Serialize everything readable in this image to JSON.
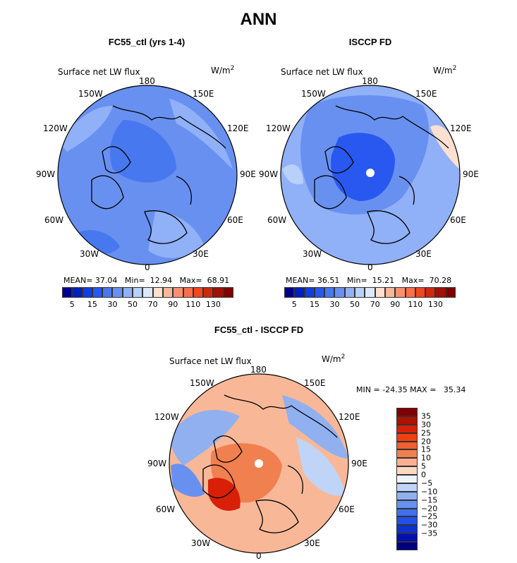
{
  "main_title": "ANN",
  "panels": [
    {
      "title": "FC55_ctl (yrs 1-4)",
      "field_label": "Surface net LW flux",
      "units": "W/m",
      "units_exp": "2",
      "lon_labels": {
        "n": "180",
        "nw": "150W",
        "ne": "150E",
        "wnw": "120W",
        "ene": "120E",
        "w": "90W",
        "e": "90E",
        "wsw": "60W",
        "ese": "60E",
        "sw": "30W",
        "se": "30E",
        "s": "0"
      },
      "stats": {
        "mean_label": "MEAN=",
        "mean": "37.04",
        "min_label": "Min=",
        "min": "12.94",
        "max_label": "Max=",
        "max": "68.91"
      }
    },
    {
      "title": "ISCCP FD",
      "field_label": "Surface net LW flux",
      "units": "W/m",
      "units_exp": "2",
      "lon_labels": {
        "n": "180",
        "nw": "150W",
        "ne": "150E",
        "wnw": "120W",
        "ene": "120E",
        "w": "90W",
        "e": "90E",
        "wsw": "60W",
        "ese": "60E",
        "sw": "30W",
        "se": "30E",
        "s": "0"
      },
      "stats": {
        "mean_label": "MEAN=",
        "mean": "36.51",
        "min_label": "Min=",
        "min": "15.21",
        "max_label": "Max=",
        "max": "70.28"
      }
    },
    {
      "title": "FC55_ctl - ISCCP FD",
      "field_label": "Surface net LW flux",
      "units": "W/m",
      "units_exp": "2",
      "lon_labels": {
        "n": "180",
        "nw": "150W",
        "ne": "150E",
        "wnw": "120W",
        "ene": "120E",
        "w": "90W",
        "e": "90E",
        "wsw": "60W",
        "ese": "60E",
        "sw": "30W",
        "se": "30E",
        "s": "0"
      },
      "stats": {
        "min_label": "MIN =",
        "min": "-24.35",
        "max_label": "MAX =",
        "max": "35.34"
      }
    }
  ],
  "colorbar_abs": {
    "colors": [
      "#00008b",
      "#0020c0",
      "#1040e0",
      "#2858f0",
      "#4878f0",
      "#6890f0",
      "#90b0f8",
      "#b8d0fa",
      "#dde8fa",
      "#fde0d0",
      "#f8b898",
      "#f89070",
      "#f87048",
      "#f04820",
      "#d02810",
      "#a01008",
      "#800000"
    ],
    "labels": [
      "5",
      "15",
      "30",
      "50",
      "70",
      "90",
      "110",
      "130"
    ]
  },
  "colorbar_diff": {
    "colors": [
      "#800000",
      "#b01000",
      "#d82008",
      "#f04010",
      "#f06030",
      "#f08050",
      "#f8b090",
      "#fcd8c0",
      "#eef4fc",
      "#c0d4f8",
      "#90b0f0",
      "#6890f0",
      "#4070f0",
      "#2050e8",
      "#1030d0",
      "#0010b0",
      "#000080"
    ],
    "labels": [
      "35",
      "30",
      "25",
      "20",
      "15",
      "10",
      "5",
      "0",
      "-5",
      "-10",
      "-15",
      "-20",
      "-25",
      "-30",
      "-35"
    ]
  },
  "chart_data": [
    {
      "type": "heatmap",
      "projection": "north polar stereographic",
      "title": "FC55_ctl (yrs 1-4)",
      "field": "Surface net LW flux",
      "units": "W/m2",
      "mean": 37.04,
      "min": 12.94,
      "max": 68.91,
      "contour_levels": [
        5,
        10,
        15,
        20,
        25,
        30,
        40,
        50,
        60,
        70,
        80,
        90,
        100,
        110,
        120,
        130
      ]
    },
    {
      "type": "heatmap",
      "projection": "north polar stereographic",
      "title": "ISCCP FD",
      "field": "Surface net LW flux",
      "units": "W/m2",
      "mean": 36.51,
      "min": 15.21,
      "max": 70.28,
      "contour_levels": [
        5,
        10,
        15,
        20,
        25,
        30,
        40,
        50,
        60,
        70,
        80,
        90,
        100,
        110,
        120,
        130
      ]
    },
    {
      "type": "heatmap",
      "projection": "north polar stereographic",
      "title": "FC55_ctl - ISCCP FD",
      "field": "Surface net LW flux",
      "units": "W/m2",
      "min": -24.35,
      "max": 35.34,
      "contour_levels": [
        -35,
        -30,
        -25,
        -20,
        -15,
        -10,
        -5,
        0,
        5,
        10,
        15,
        20,
        25,
        30,
        35
      ]
    }
  ]
}
